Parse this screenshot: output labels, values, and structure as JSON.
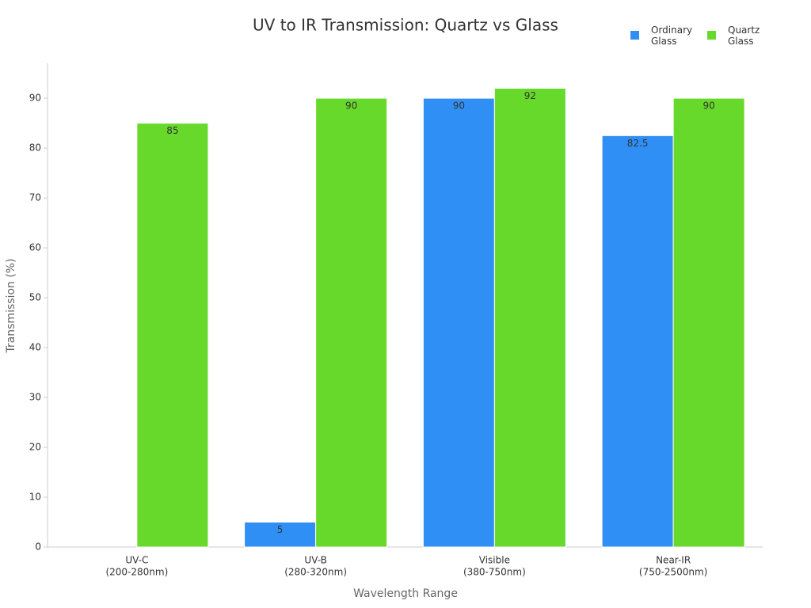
{
  "chart_data": {
    "type": "bar",
    "title": "UV to IR Transmission: Quartz vs Glass",
    "x_label": "Wavelength Range",
    "y_label": "Transmission (%)",
    "categories": [
      [
        "UV-C",
        "(200-280nm)"
      ],
      [
        "UV-B",
        "(280-320nm)"
      ],
      [
        "Visible",
        "(380-750nm)"
      ],
      [
        "Near-IR",
        "(750-2500nm)"
      ]
    ],
    "series": [
      {
        "name": "Ordinary Glass",
        "color": "#2f8ff5",
        "values": [
          null,
          5,
          90,
          82.5
        ]
      },
      {
        "name": "Quartz Glass",
        "color": "#66d92a",
        "values": [
          85,
          90,
          92,
          90
        ]
      }
    ],
    "ylim": [
      0,
      97
    ],
    "yticks": [
      0,
      10,
      20,
      30,
      40,
      50,
      60,
      70,
      80,
      90
    ],
    "legend": "top-right"
  }
}
